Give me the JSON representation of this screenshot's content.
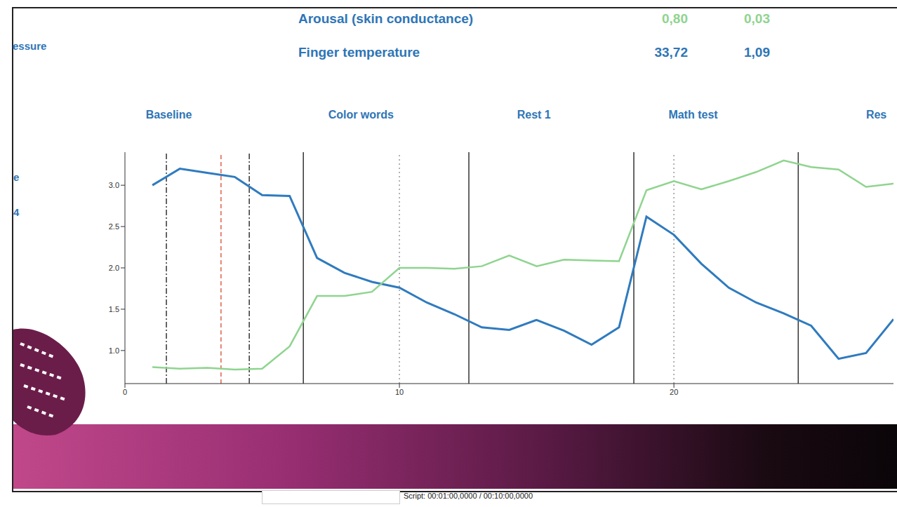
{
  "header": {
    "left_text": "essure",
    "rows": [
      {
        "label": "Arousal (skin conductance)",
        "values": [
          "0,80",
          "0,03"
        ],
        "color": "#8fd48f"
      },
      {
        "label": "Finger temperature",
        "values": [
          "33,72",
          "1,09"
        ],
        "color": "#2e75b6"
      }
    ]
  },
  "side_texts": [
    "e",
    "4"
  ],
  "footer": "Script: 00:01:00,0000 / 00:10:00,0000",
  "chart_data": {
    "type": "line",
    "sections": [
      {
        "label": "Baseline",
        "x": 1.6
      },
      {
        "label": "Color words",
        "x": 8.6
      },
      {
        "label": "Rest 1",
        "x": 14.9
      },
      {
        "label": "Math test",
        "x": 20.7
      },
      {
        "label": "Res",
        "x": 27.0
      }
    ],
    "vlines": [
      {
        "x": 1.51,
        "line_style": "dashdot",
        "color": "#333333"
      },
      {
        "x": 3.5,
        "line_style": "dashed",
        "color": "#e0604a"
      },
      {
        "x": 4.53,
        "line_style": "dashdot",
        "color": "#333333"
      },
      {
        "x": 6.5,
        "line_style": "solid",
        "color": "#333333"
      },
      {
        "x": 10,
        "line_style": "dotted",
        "color": "#999999"
      },
      {
        "x": 12.53,
        "line_style": "solid",
        "color": "#333333"
      },
      {
        "x": 18.54,
        "line_style": "solid",
        "color": "#333333"
      },
      {
        "x": 20,
        "line_style": "dotted",
        "color": "#999999"
      },
      {
        "x": 24.53,
        "line_style": "solid",
        "color": "#333333"
      }
    ],
    "x": [
      1,
      2,
      3,
      4,
      5,
      6,
      7,
      8,
      9,
      10,
      11,
      12,
      13,
      14,
      15,
      16,
      17,
      18,
      19,
      20,
      21,
      22,
      23,
      24,
      25,
      26,
      27,
      28
    ],
    "series": [
      {
        "color": "#2f7bbf",
        "values": [
          3.0,
          3.2,
          3.15,
          3.1,
          2.88,
          2.87,
          2.12,
          1.94,
          1.83,
          1.76,
          1.58,
          1.44,
          1.28,
          1.25,
          1.37,
          1.24,
          1.07,
          1.28,
          2.62,
          2.4,
          2.05,
          1.76,
          1.58,
          1.45,
          1.3,
          0.9,
          0.97,
          1.38
        ]
      },
      {
        "color": "#8fd48f",
        "values": [
          0.8,
          0.78,
          0.79,
          0.77,
          0.78,
          1.05,
          1.66,
          1.66,
          1.71,
          2.0,
          2.0,
          1.99,
          2.02,
          2.15,
          2.02,
          2.1,
          2.09,
          2.08,
          2.94,
          3.05,
          2.95,
          3.05,
          3.16,
          3.3,
          3.22,
          3.19,
          2.98,
          3.02
        ]
      }
    ],
    "xlim": [
      0,
      28
    ],
    "xticks": [
      0,
      10,
      20
    ],
    "ylim": [
      0.6,
      3.4
    ],
    "yticks": [
      {
        "value": 1,
        "label": "1.0"
      },
      {
        "value": 1.5,
        "label": "1.5"
      },
      {
        "value": 2,
        "label": "2.0"
      },
      {
        "value": 2.5,
        "label": "2.5"
      },
      {
        "value": 3,
        "label": "3.0"
      }
    ],
    "grid": false
  }
}
